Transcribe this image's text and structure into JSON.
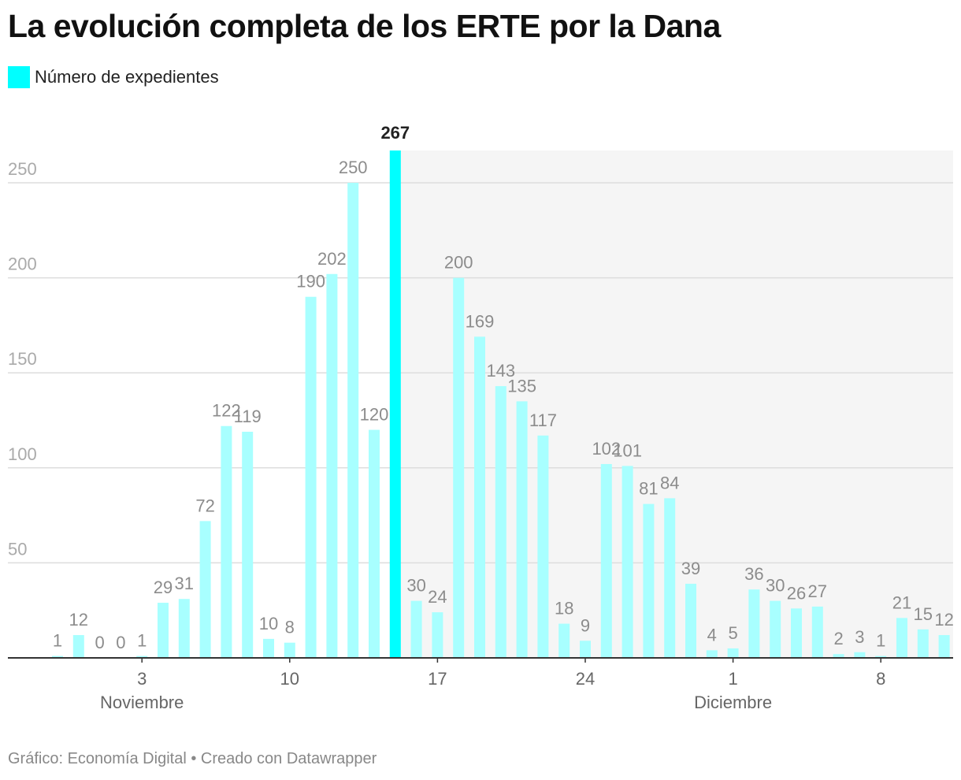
{
  "title": "La evolución completa de los ERTE por la Dana",
  "legend": {
    "label": "Número de expedientes"
  },
  "footer": "Gráfico: Economía Digital • Creado con Datawrapper",
  "colors": {
    "bar": "#a8ffff",
    "highlight": "#00ffff",
    "shade": "#f5f5f5",
    "grid": "#dddddd",
    "axis": "#333333",
    "tick_label": "#aaaaaa",
    "value_label": "#8c8c8c",
    "highlight_label": "#222222",
    "axis_label": "#666666"
  },
  "chart_data": {
    "type": "bar",
    "title": "La evolución completa de los ERTE por la Dana",
    "series": [
      {
        "name": "Número de expedientes",
        "values": [
          1,
          12,
          0,
          0,
          1,
          29,
          31,
          72,
          122,
          119,
          10,
          8,
          190,
          202,
          250,
          120,
          267,
          30,
          24,
          200,
          169,
          143,
          135,
          117,
          18,
          9,
          102,
          101,
          81,
          84,
          39,
          4,
          5,
          36,
          30,
          26,
          27,
          2,
          3,
          1,
          21,
          15,
          12
        ]
      }
    ],
    "value_labels": [
      "1",
      "12",
      "0",
      "0",
      "1",
      "29",
      "31",
      "72",
      "122",
      "119",
      "10",
      "8",
      "190",
      "202",
      "250",
      "120",
      "267",
      "30",
      "24",
      "200",
      "169",
      "143",
      "135",
      "117",
      "18",
      "9",
      "102",
      "101",
      "81",
      "84",
      "39",
      "4",
      "5",
      "36",
      "30",
      "26",
      "27",
      "2",
      "3",
      "1",
      "21",
      "15",
      "12"
    ],
    "highlight_index": 16,
    "shaded_from_index": 16,
    "y_ticks": [
      {
        "value": 50,
        "label": "50"
      },
      {
        "value": 100,
        "label": "100"
      },
      {
        "value": 150,
        "label": "150"
      },
      {
        "value": 200,
        "label": "200"
      },
      {
        "value": 250,
        "label": "250"
      }
    ],
    "ylim": [
      0,
      267
    ],
    "x_ticks": [
      {
        "index": 4,
        "label": "3"
      },
      {
        "index": 11,
        "label": "10"
      },
      {
        "index": 18,
        "label": "17"
      },
      {
        "index": 25,
        "label": "24"
      },
      {
        "index": 32,
        "label": "1"
      },
      {
        "index": 39,
        "label": "8"
      }
    ],
    "month_labels": [
      {
        "index": 4,
        "label": "Noviembre"
      },
      {
        "index": 32,
        "label": "Diciembre"
      }
    ],
    "xlabel": "",
    "ylabel": ""
  }
}
